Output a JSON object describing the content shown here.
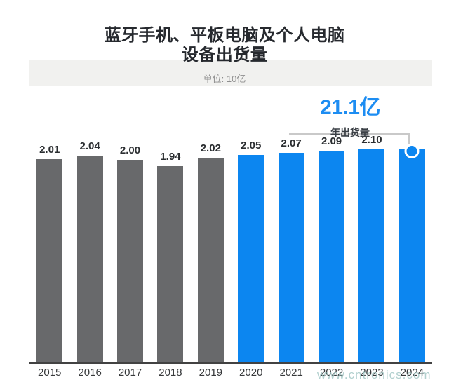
{
  "title": {
    "line1": "蓝牙手机、平板电脑及个人电脑",
    "line2": "设备出货量"
  },
  "subtitle": "单位: 10亿",
  "annotation": {
    "value": "21.1亿",
    "label": "年出货量"
  },
  "watermark": "www.cntronics.com",
  "colors": {
    "bar_gray": "#68696b",
    "bar_blue": "#0c86f0",
    "accent_blue": "#1d8df2",
    "band": "#f1f1ef",
    "axis": "#424242",
    "bracket": "#c9c9c9",
    "watermark": "#9fc5c3"
  },
  "chart_data": {
    "type": "bar",
    "title": "蓝牙手机、平板电脑及个人电脑设备出货量",
    "unit": "10亿",
    "categories": [
      "2015",
      "2016",
      "2017",
      "2018",
      "2019",
      "2020",
      "2021",
      "2022",
      "2023",
      "2024"
    ],
    "values": [
      2.01,
      2.04,
      2.0,
      1.94,
      2.02,
      2.05,
      2.07,
      2.09,
      2.1,
      2.11
    ],
    "bar_labels": [
      "2.01",
      "2.04",
      "2.00",
      "1.94",
      "2.02",
      "2.05",
      "2.07",
      "2.09",
      "2.10",
      ""
    ],
    "bar_colors": [
      "gray",
      "gray",
      "gray",
      "gray",
      "gray",
      "blue",
      "blue",
      "blue",
      "blue",
      "blue"
    ],
    "highlight_index": 9,
    "ylim": [
      0,
      2.3
    ],
    "grid": false,
    "legend": false,
    "annotation": {
      "text": "21.1亿",
      "subtext": "年出货量",
      "applies_to": "2024"
    }
  }
}
